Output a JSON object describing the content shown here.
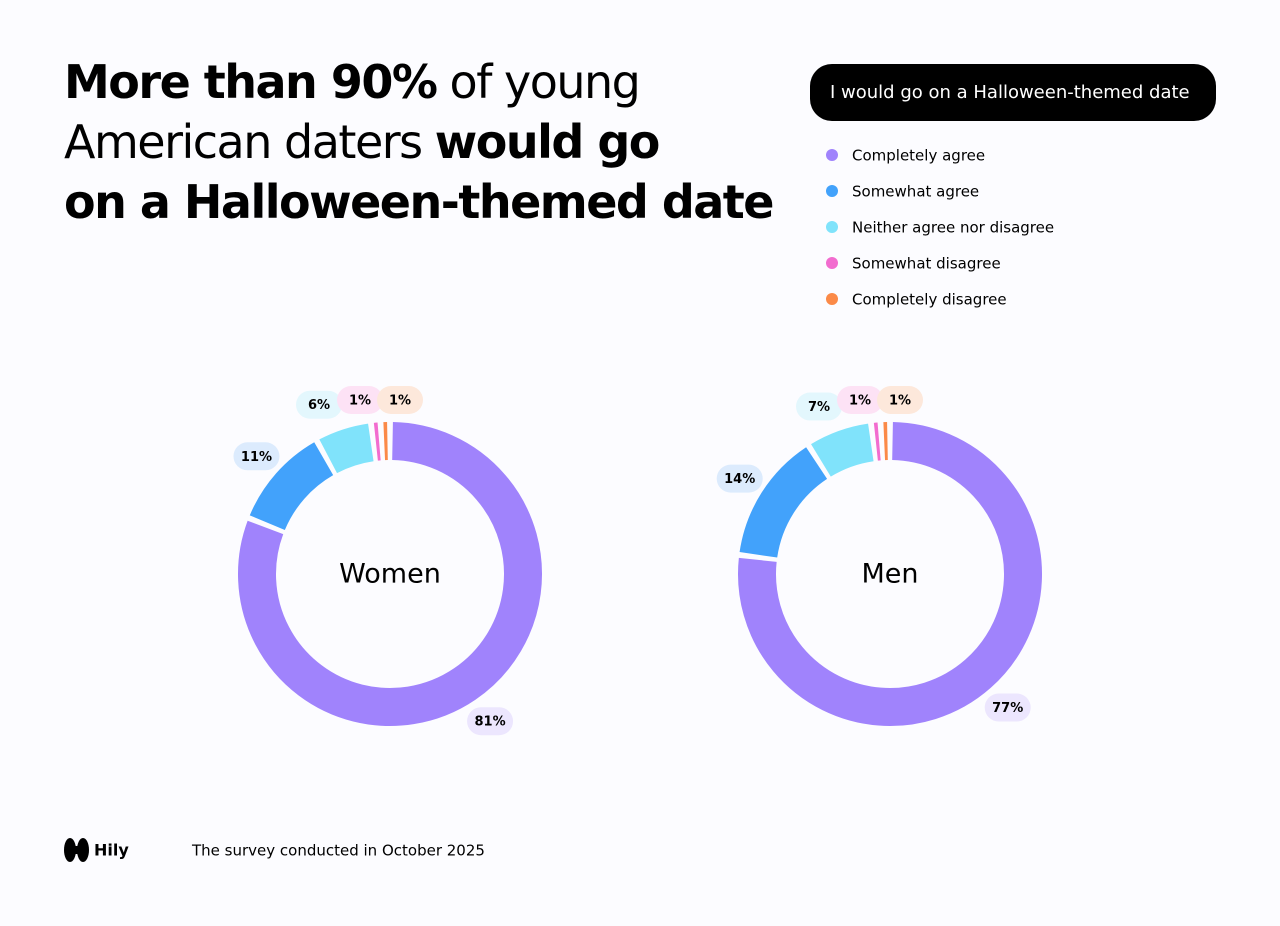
{
  "headline": [
    [
      {
        "text": "More than 90%",
        "bold": true
      },
      {
        "text": " of young",
        "bold": false
      }
    ],
    [
      {
        "text": "American daters ",
        "bold": false
      },
      {
        "text": "would go",
        "bold": true
      }
    ],
    [
      {
        "text": "on a Halloween-themed date",
        "bold": true
      }
    ]
  ],
  "legend": {
    "title": "I would go on a Halloween-themed date",
    "categories": [
      "Completely agree",
      "Somewhat agree",
      "Neither agree nor disagree",
      "Somewhat disagree",
      "Completely disagree"
    ],
    "colors": [
      "#a083fc",
      "#42a2fb",
      "#80e3fb",
      "#f26ccf",
      "#fb8a48"
    ],
    "label_colors": [
      "#ece6fe",
      "#dcebfd",
      "#e3f7fd",
      "#fde2f5",
      "#fde8db"
    ]
  },
  "chart_data": [
    {
      "type": "pie",
      "donut": true,
      "title": "Women",
      "values": [
        81,
        11,
        6,
        1,
        1
      ],
      "value_labels": [
        "81%",
        "11%",
        "6%",
        "1%",
        "1%"
      ]
    },
    {
      "type": "pie",
      "donut": true,
      "title": "Men",
      "values": [
        77,
        14,
        7,
        1,
        1
      ],
      "value_labels": [
        "77%",
        "14%",
        "7%",
        "1%",
        "1%"
      ]
    }
  ],
  "footer": {
    "brand": "Hily",
    "note": "The survey conducted in October 2025"
  }
}
